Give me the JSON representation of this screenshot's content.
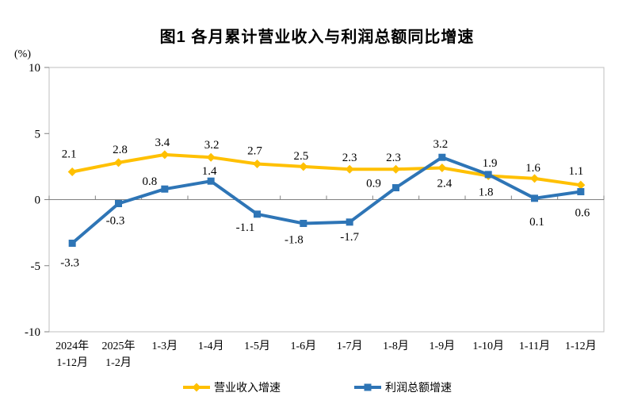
{
  "title": "图1  各月累计营业收入与利润总额同比增速",
  "y_axis_unit": "(%)",
  "colors": {
    "plot_border": "#BFBFBF",
    "axis": "#808080",
    "revenue_series": "#FFC000",
    "profit_series": "#2E75B6",
    "text": "#000000"
  },
  "chart_data": {
    "type": "line",
    "title": "图1  各月累计营业收入与利润总额同比增速",
    "xlabel": "",
    "ylabel": "(%)",
    "ylim": [
      -10,
      10
    ],
    "yticks": [
      10,
      5,
      0,
      -5,
      -10
    ],
    "grid": false,
    "legend_position": "bottom",
    "categories": [
      "2024年\n1-12月",
      "2025年\n1-2月",
      "1-3月",
      "1-4月",
      "1-5月",
      "1-6月",
      "1-7月",
      "1-8月",
      "1-9月",
      "1-10月",
      "1-11月",
      "1-12月"
    ],
    "series": [
      {
        "name": "营业收入增速",
        "color": "#FFC000",
        "marker": "diamond",
        "values": [
          2.1,
          2.8,
          3.4,
          3.2,
          2.7,
          2.5,
          2.3,
          2.3,
          2.4,
          1.8,
          1.6,
          1.1
        ],
        "label_offsets": [
          [
            -4,
            -23
          ],
          [
            2,
            -17
          ],
          [
            -3,
            -16
          ],
          [
            1,
            -16
          ],
          [
            -3,
            -17
          ],
          [
            -3,
            -14
          ],
          [
            0,
            -15
          ],
          [
            -3,
            -15
          ],
          [
            3,
            19
          ],
          [
            -3,
            20
          ],
          [
            -2,
            -14
          ],
          [
            -6,
            -18
          ]
        ]
      },
      {
        "name": "利润总额增速",
        "color": "#2E75B6",
        "marker": "square",
        "values": [
          -3.3,
          -0.3,
          0.8,
          1.4,
          -1.1,
          -1.8,
          -1.7,
          0.9,
          3.2,
          1.9,
          0.1,
          0.6
        ],
        "label_offsets": [
          [
            -3,
            24
          ],
          [
            -4,
            21
          ],
          [
            -19,
            -10
          ],
          [
            -2,
            -13
          ],
          [
            -15,
            16
          ],
          [
            -12,
            20
          ],
          [
            0,
            18
          ],
          [
            -28,
            -6
          ],
          [
            -2,
            -17
          ],
          [
            2,
            -15
          ],
          [
            3,
            29
          ],
          [
            2,
            26
          ]
        ]
      }
    ]
  }
}
